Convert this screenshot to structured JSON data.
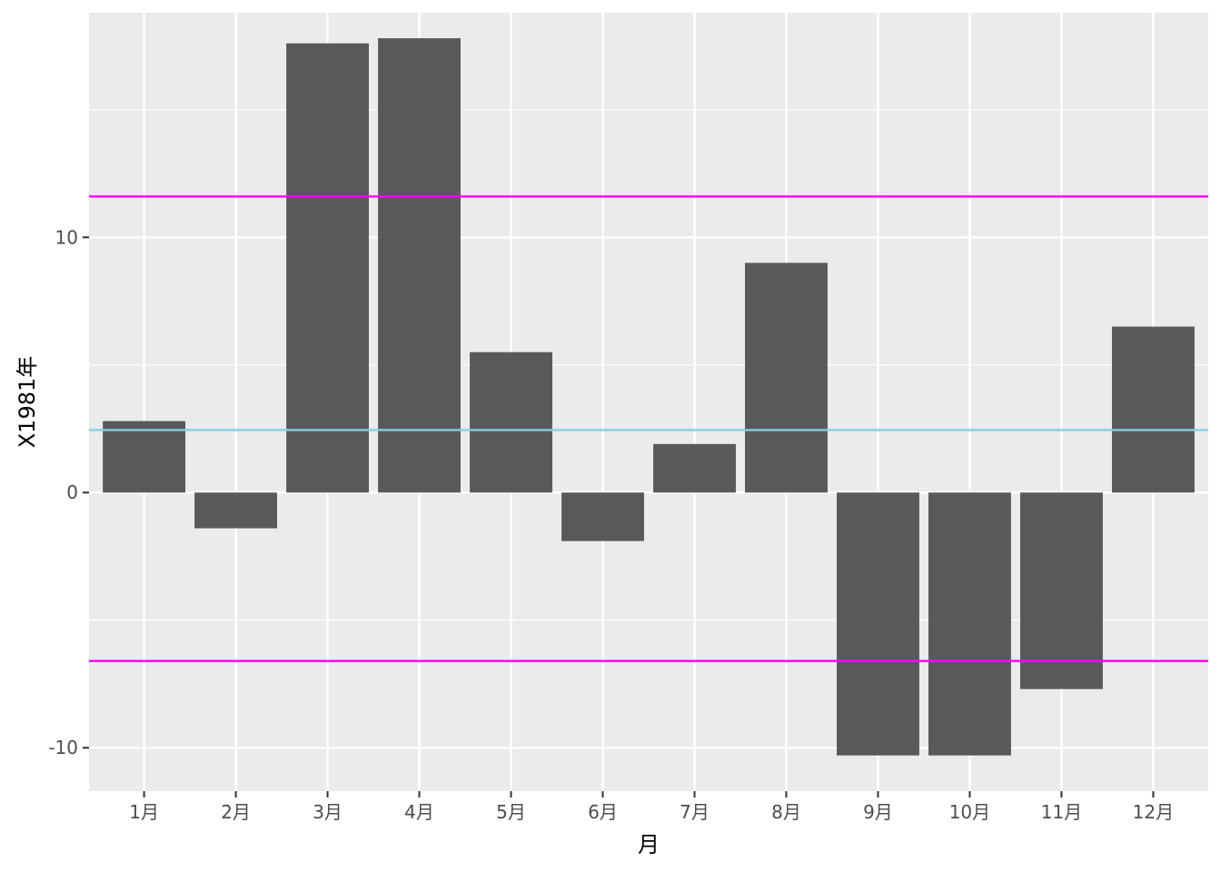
{
  "chart_data": {
    "type": "bar",
    "categories": [
      "1月",
      "2月",
      "3月",
      "4月",
      "5月",
      "6月",
      "7月",
      "8月",
      "9月",
      "10月",
      "11月",
      "12月"
    ],
    "values": [
      2.8,
      -1.4,
      17.6,
      17.8,
      5.5,
      -1.9,
      1.9,
      9.0,
      -10.3,
      -10.3,
      -7.7,
      6.5
    ],
    "xlabel": "月",
    "ylabel": "X1981年",
    "ylim": [
      -11.7,
      18.8
    ],
    "yticks": [
      -10,
      0,
      10
    ],
    "yticklabels": [
      "-10",
      "0",
      "10"
    ],
    "reference_lines": [
      {
        "y": 11.6,
        "color": "#ff00ff"
      },
      {
        "y": -6.6,
        "color": "#ff00ff"
      },
      {
        "y": 2.45,
        "color": "#87ceeb"
      }
    ],
    "grid": true,
    "colors": {
      "bar": "#595959",
      "panel": "#ebebeb",
      "grid": "#ffffff"
    }
  }
}
